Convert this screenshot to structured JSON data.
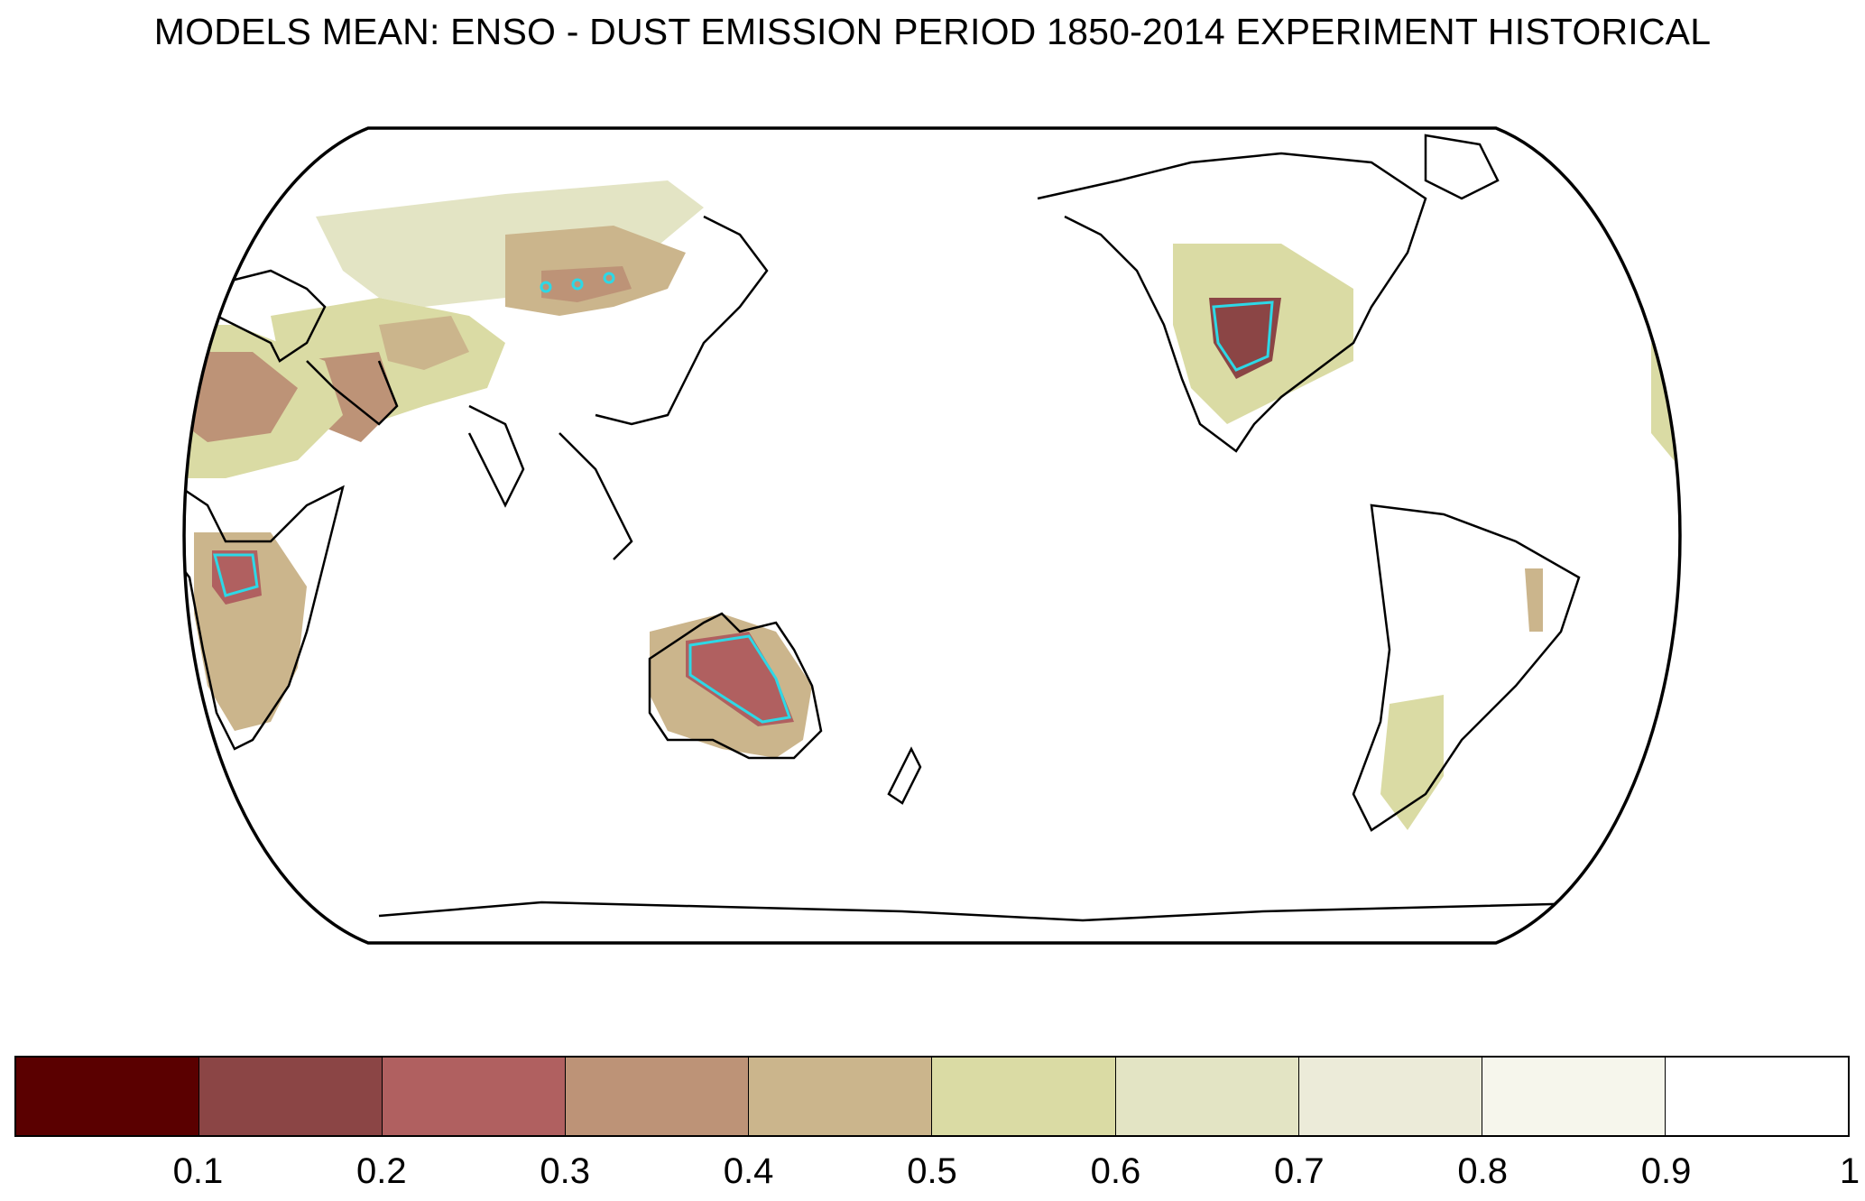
{
  "title": "MODELS MEAN: ENSO - DUST EMISSION PERIOD 1850-2014 EXPERIMENT HISTORICAL",
  "colorbar": {
    "colors": [
      "#5a0000",
      "#8b4545",
      "#b06060",
      "#bd9377",
      "#cbb58c",
      "#dadba4",
      "#e3e4c4",
      "#ecebd9",
      "#f6f6ec",
      "#ffffff"
    ],
    "tick_labels": [
      "0.1",
      "0.2",
      "0.3",
      "0.4",
      "0.5",
      "0.6",
      "0.7",
      "0.8",
      "0.9",
      "1"
    ]
  },
  "map": {
    "projection": "Eckert-like, Pacific-centred",
    "contour_color": "#2dd8e6",
    "coast_color": "#000000"
  }
}
